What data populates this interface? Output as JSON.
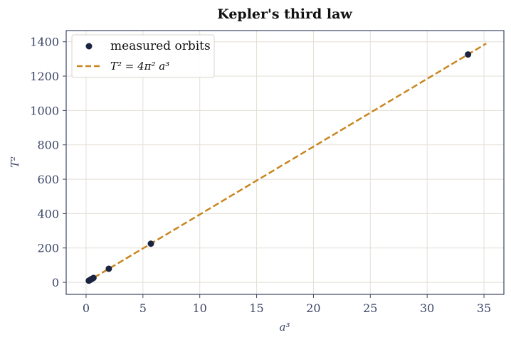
{
  "chart_data": {
    "type": "scatter",
    "title": "Kepler's third law",
    "xlabel": "a³",
    "ylabel": "T²",
    "xlim": [
      -1.75,
      36.75
    ],
    "ylim": [
      -70,
      1465
    ],
    "xticks": [
      0,
      5,
      10,
      15,
      20,
      25,
      30,
      35
    ],
    "yticks": [
      0,
      200,
      400,
      600,
      800,
      1000,
      1200,
      1400
    ],
    "grid": true,
    "legend_position": "top-left",
    "series": [
      {
        "name": "measured orbits",
        "kind": "points",
        "color": "#1a2340",
        "x": [
          0.24,
          0.38,
          0.5,
          0.65,
          2.0,
          5.7,
          33.6
        ],
        "y": [
          9.5,
          15,
          19.7,
          25.7,
          79,
          225,
          1326
        ]
      },
      {
        "name": "T² = 4π² a³",
        "kind": "line",
        "style": "dashed",
        "color": "#c8861e",
        "x": [
          0,
          35.2
        ],
        "y": [
          0,
          1389.6
        ]
      }
    ]
  },
  "legend": {
    "items": [
      "measured orbits",
      "T² = 4π² a³"
    ]
  },
  "colors": {
    "axes": "#3b4566",
    "grid": "#e3dfd6",
    "marker": "#1a2340",
    "fit_line": "#c8861e"
  }
}
